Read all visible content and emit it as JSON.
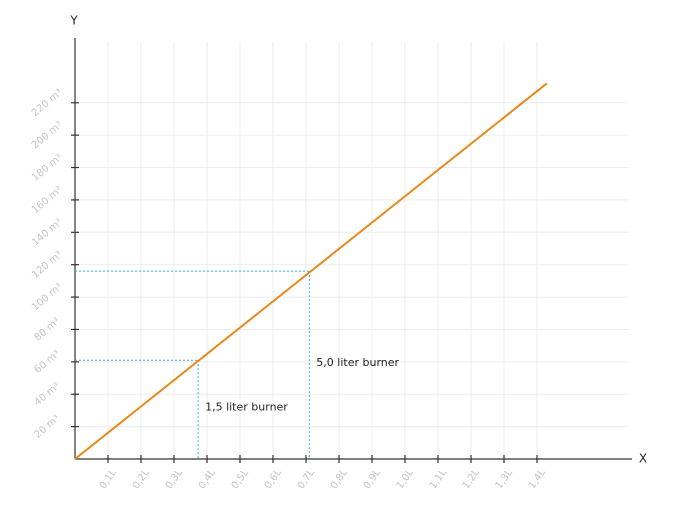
{
  "chart_data": {
    "type": "line",
    "x_label": "X",
    "y_label": "Y",
    "xlim": [
      0,
      1.7
    ],
    "ylim": [
      0,
      260
    ],
    "xticks": [
      {
        "value": 0.1,
        "label": "0,1L"
      },
      {
        "value": 0.2,
        "label": "0,2L"
      },
      {
        "value": 0.3,
        "label": "0,3L"
      },
      {
        "value": 0.4,
        "label": "0,4L"
      },
      {
        "value": 0.5,
        "label": "0,5L"
      },
      {
        "value": 0.6,
        "label": "0,6L"
      },
      {
        "value": 0.7,
        "label": "0,7L"
      },
      {
        "value": 0.8,
        "label": "0,8L"
      },
      {
        "value": 0.9,
        "label": "0,9L"
      },
      {
        "value": 1.0,
        "label": "1,0L"
      },
      {
        "value": 1.1,
        "label": "1,1L"
      },
      {
        "value": 1.2,
        "label": "1,2L"
      },
      {
        "value": 1.3,
        "label": "1,3L"
      },
      {
        "value": 1.4,
        "label": "1,4L"
      }
    ],
    "yticks": [
      {
        "value": 20,
        "label": "20 m³"
      },
      {
        "value": 40,
        "label": "40 m³"
      },
      {
        "value": 60,
        "label": "60 m³"
      },
      {
        "value": 80,
        "label": "80 m³"
      },
      {
        "value": 100,
        "label": "100 m³"
      },
      {
        "value": 120,
        "label": "120 m³"
      },
      {
        "value": 140,
        "label": "140 m³"
      },
      {
        "value": 160,
        "label": "160 m³"
      },
      {
        "value": 180,
        "label": "180 m³"
      },
      {
        "value": 200,
        "label": "200 m³"
      },
      {
        "value": 220,
        "label": "220 m³"
      }
    ],
    "grid": true,
    "series": [
      {
        "color": "#e8891c",
        "x": [
          0,
          1.43
        ],
        "values": [
          0,
          232
        ]
      }
    ],
    "annotations": [
      {
        "text": "1,5 liter burner",
        "x": 0.373,
        "y": 61
      },
      {
        "text": "5,0 liter burner",
        "x": 0.71,
        "y": 116
      }
    ],
    "annotation_color": "#3aa6c9"
  }
}
